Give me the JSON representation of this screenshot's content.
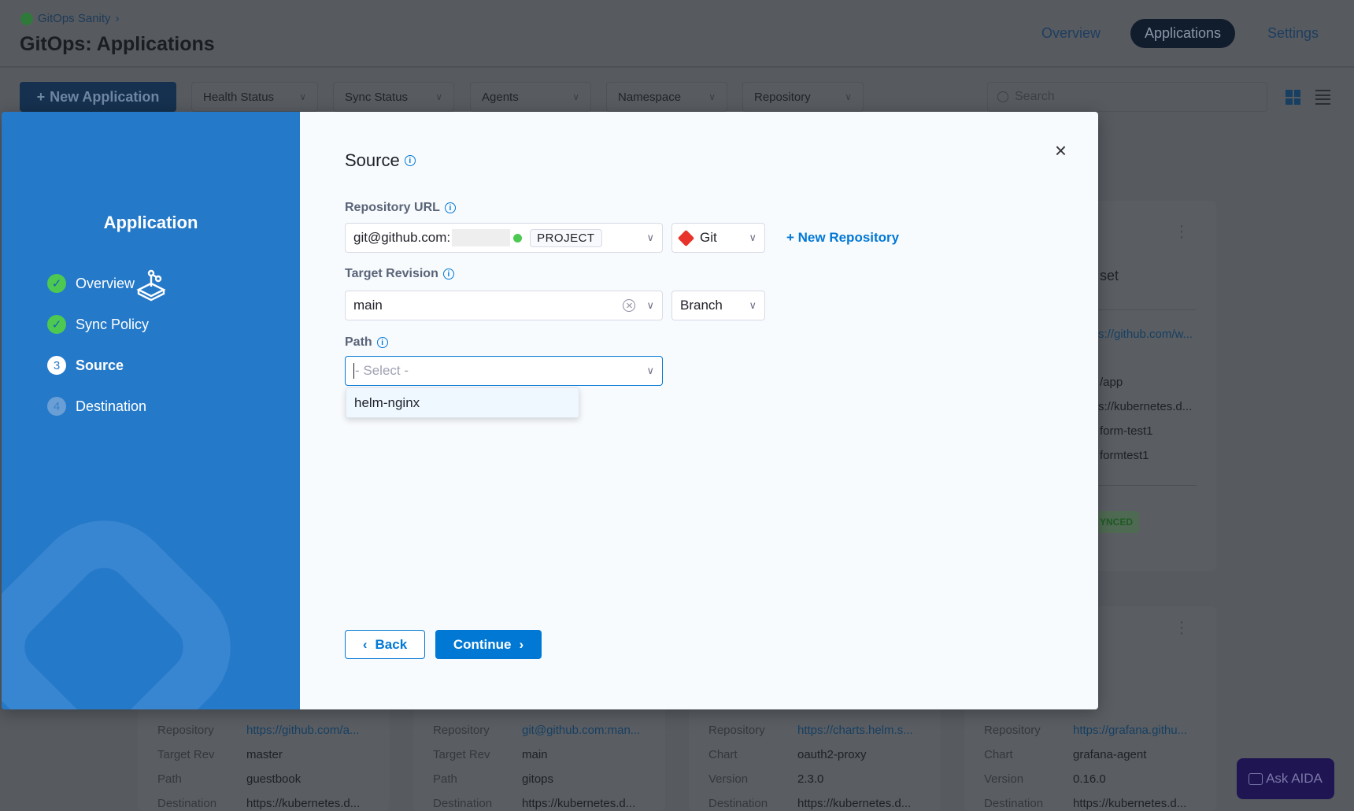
{
  "header": {
    "breadcrumb": "GitOps Sanity",
    "title": "GitOps: Applications",
    "tabs": [
      {
        "label": "Overview"
      },
      {
        "label": "Applications"
      },
      {
        "label": "Settings"
      }
    ]
  },
  "toolbar": {
    "new_app": "New Application",
    "filters": [
      {
        "label": "Health Status"
      },
      {
        "label": "Sync Status"
      },
      {
        "label": "Agents"
      },
      {
        "label": "Namespace"
      },
      {
        "label": "Repository"
      }
    ],
    "search_placeholder": "Search"
  },
  "bg_card": {
    "title_fragment": "set",
    "repo": "s://github.com/w...",
    "path": "/app",
    "dest": "s://kubernetes.d...",
    "ns": "form-test1",
    "name": "formtest1",
    "status": "YNCED"
  },
  "bottom_cards": [
    {
      "rows": [
        {
          "k": "Repository",
          "v": "https://github.com/a..."
        },
        {
          "k": "Target Rev",
          "v": "master"
        },
        {
          "k": "Path",
          "v": "guestbook"
        },
        {
          "k": "Destination",
          "v": "https://kubernetes.d..."
        }
      ]
    },
    {
      "rows": [
        {
          "k": "Repository",
          "v": "git@github.com:man..."
        },
        {
          "k": "Target Rev",
          "v": "main"
        },
        {
          "k": "Path",
          "v": "gitops"
        },
        {
          "k": "Destination",
          "v": "https://kubernetes.d..."
        }
      ]
    },
    {
      "rows": [
        {
          "k": "Repository",
          "v": "https://charts.helm.s..."
        },
        {
          "k": "Chart",
          "v": "oauth2-proxy"
        },
        {
          "k": "Version",
          "v": "2.3.0"
        },
        {
          "k": "Destination",
          "v": "https://kubernetes.d..."
        }
      ]
    },
    {
      "rows": [
        {
          "k": "Repository",
          "v": "https://grafana.githu..."
        },
        {
          "k": "Chart",
          "v": "grafana-agent"
        },
        {
          "k": "Version",
          "v": "0.16.0"
        },
        {
          "k": "Destination",
          "v": "https://kubernetes.d..."
        }
      ]
    }
  ],
  "ask_aida": "Ask AIDA",
  "wizard": {
    "title": "Application",
    "steps": [
      {
        "num": "1",
        "label": "Overview",
        "state": "done"
      },
      {
        "num": "2",
        "label": "Sync Policy",
        "state": "done"
      },
      {
        "num": "3",
        "label": "Source",
        "state": "active"
      },
      {
        "num": "4",
        "label": "Destination",
        "state": "pending"
      }
    ]
  },
  "form": {
    "title": "Source",
    "repo_label": "Repository URL",
    "repo_value": "git@github.com:",
    "repo_scope": "PROJECT",
    "repo_type": "Git",
    "new_repo": "+ New Repository",
    "rev_label": "Target Revision",
    "rev_value": "main",
    "rev_type": "Branch",
    "path_label": "Path",
    "path_placeholder": "- Select -",
    "path_options": [
      "helm-nginx"
    ],
    "back": "Back",
    "continue": "Continue"
  },
  "colors": {
    "accent": "#0278d5",
    "wizard_bg": "#2579c9",
    "done": "#4dc952"
  }
}
